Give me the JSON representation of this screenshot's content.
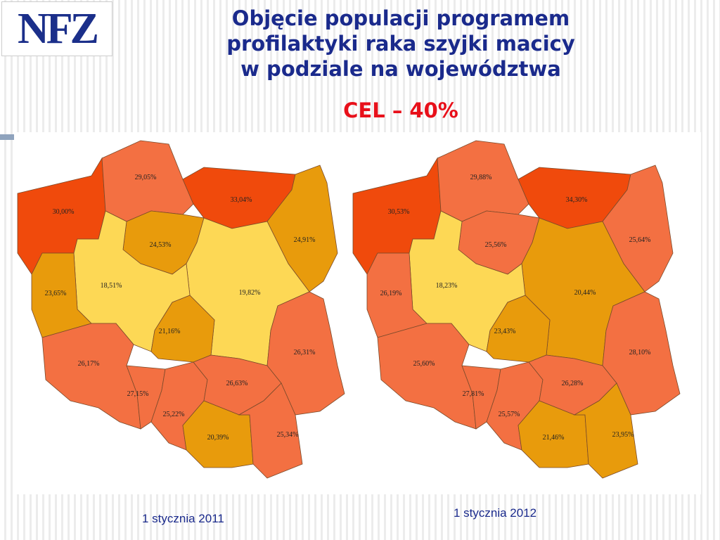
{
  "header": {
    "logo": "NFZ",
    "title_lines": [
      "Objęcie populacji programem",
      "profilaktyki raka szyjki macicy",
      "w podziale na województwa"
    ],
    "target": "CEL – 40%"
  },
  "maps": [
    {
      "caption": "1 stycznia 2011",
      "regions": [
        {
          "label": "30,00%",
          "color": "#f04a0c"
        },
        {
          "label": "29,05%",
          "color": "#f37042"
        },
        {
          "label": "33,04%",
          "color": "#f04a0c"
        },
        {
          "label": "24,91%",
          "color": "#e89b0c"
        },
        {
          "label": "24,53%",
          "color": "#e89b0c"
        },
        {
          "label": "19,82%",
          "color": "#fdd855"
        },
        {
          "label": "18,51%",
          "color": "#fdd855"
        },
        {
          "label": "23,65%",
          "color": "#e89b0c"
        },
        {
          "label": "21,16%",
          "color": "#e89b0c"
        },
        {
          "label": "26,31%",
          "color": "#f37042"
        },
        {
          "label": "26,17%",
          "color": "#f37042"
        },
        {
          "label": "27,15%",
          "color": "#f37042"
        },
        {
          "label": "25,22%",
          "color": "#f37042"
        },
        {
          "label": "26,63%",
          "color": "#f37042"
        },
        {
          "label": "20,39%",
          "color": "#e89b0c"
        },
        {
          "label": "25,34%",
          "color": "#f37042"
        }
      ]
    },
    {
      "caption": "1 stycznia  2012",
      "regions": [
        {
          "label": "30,53%",
          "color": "#f04a0c"
        },
        {
          "label": "29,88%",
          "color": "#f37042"
        },
        {
          "label": "34,30%",
          "color": "#f04a0c"
        },
        {
          "label": "25,64%",
          "color": "#f37042"
        },
        {
          "label": "25,56%",
          "color": "#f37042"
        },
        {
          "label": "20,44%",
          "color": "#e89b0c"
        },
        {
          "label": "18,23%",
          "color": "#fdd855"
        },
        {
          "label": "26,19%",
          "color": "#f37042"
        },
        {
          "label": "23,43%",
          "color": "#e89b0c"
        },
        {
          "label": "28,10%",
          "color": "#f37042"
        },
        {
          "label": "25,60%",
          "color": "#f37042"
        },
        {
          "label": "27,81%",
          "color": "#f37042"
        },
        {
          "label": "25,57%",
          "color": "#f37042"
        },
        {
          "label": "26,28%",
          "color": "#f37042"
        },
        {
          "label": "21,46%",
          "color": "#e89b0c"
        },
        {
          "label": "23,95%",
          "color": "#e89b0c"
        }
      ]
    }
  ]
}
